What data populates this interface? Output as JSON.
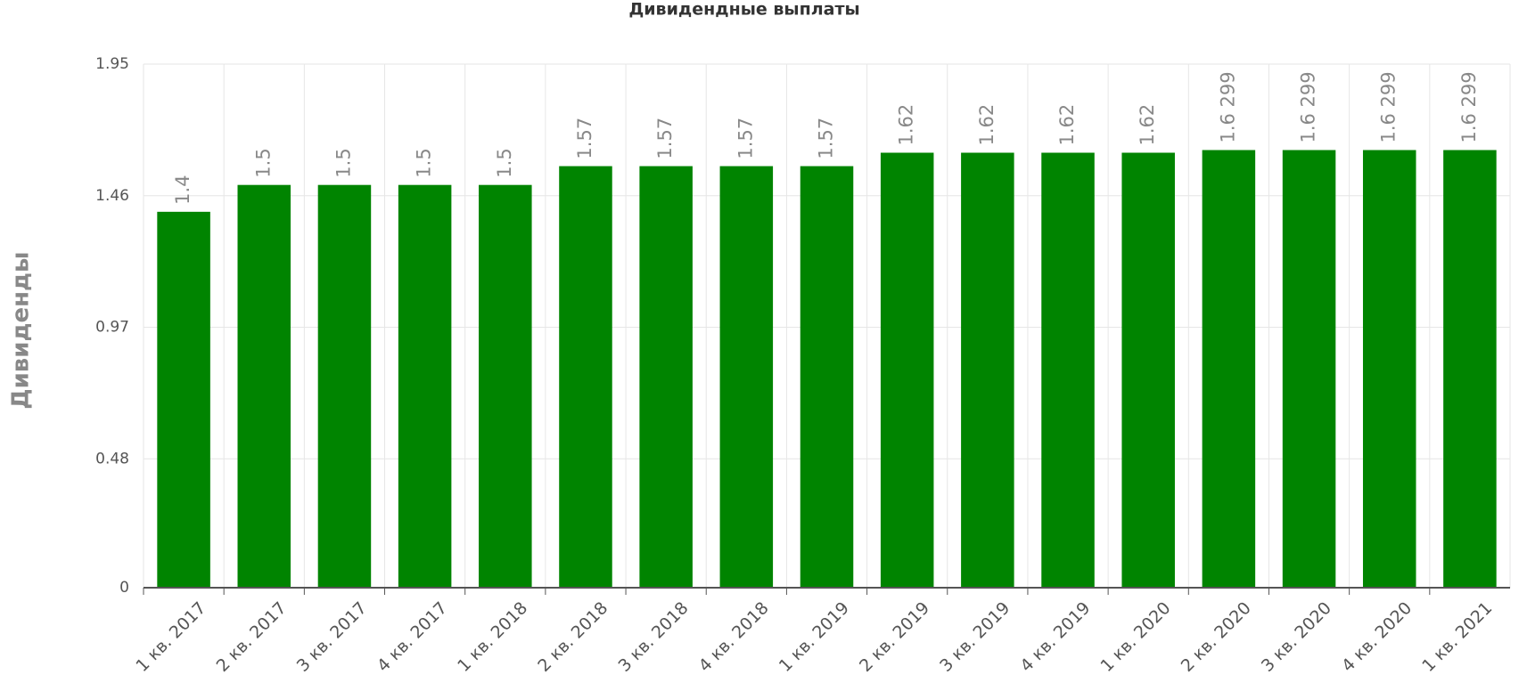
{
  "chart_data": {
    "type": "bar",
    "title": "Дивидендные выплаты",
    "y_label": "Дивиденды",
    "categories": [
      "1 кв. 2017",
      "2 кв. 2017",
      "3 кв. 2017",
      "4 кв. 2017",
      "1 кв. 2018",
      "2 кв. 2018",
      "3 кв. 2018",
      "4 кв. 2018",
      "1 кв. 2019",
      "2 кв. 2019",
      "3 кв. 2019",
      "4 кв. 2019",
      "1 кв. 2020",
      "2 кв. 2020",
      "3 кв. 2020",
      "4 кв. 2020",
      "1 кв. 2021"
    ],
    "values": [
      1.4,
      1.5,
      1.5,
      1.5,
      1.5,
      1.57,
      1.57,
      1.57,
      1.57,
      1.62,
      1.62,
      1.62,
      1.62,
      1.6299,
      1.6299,
      1.6299,
      1.6299
    ],
    "value_labels": [
      "1.4",
      "1.5",
      "1.5",
      "1.5",
      "1.5",
      "1.57",
      "1.57",
      "1.57",
      "1.57",
      "1.62",
      "1.62",
      "1.62",
      "1.62",
      "1.6 299",
      "1.6 299",
      "1.6 299",
      "1.6 299"
    ],
    "color": "#008400",
    "ylim": [
      0,
      1.95
    ],
    "yticks": [
      0,
      0.48,
      0.97,
      1.46,
      1.95
    ],
    "grid": true
  }
}
